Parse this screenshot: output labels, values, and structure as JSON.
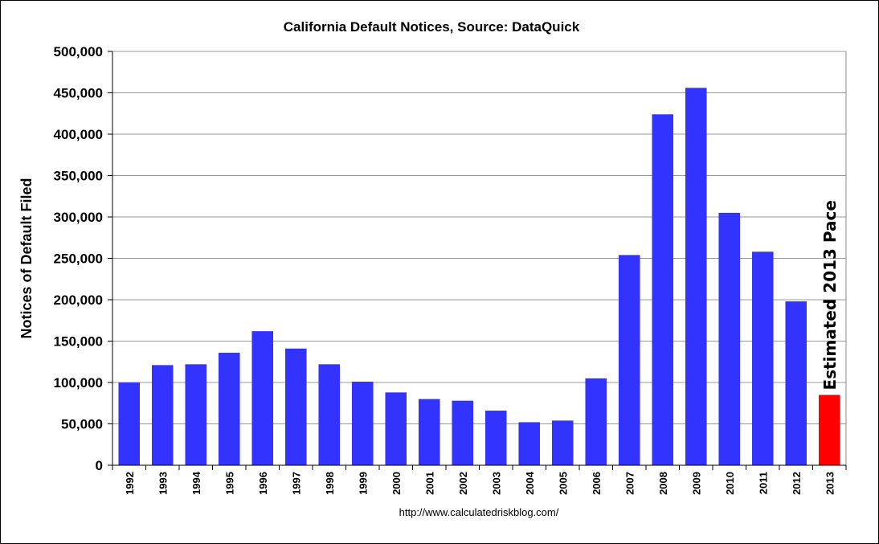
{
  "chart_data": {
    "type": "bar",
    "title": "California Default Notices, Source: DataQuick",
    "ylabel": "Notices of Default Filed",
    "xlabel": "",
    "source_note": "http://www.calculatedriskblog.com/",
    "ylim": [
      0,
      500000
    ],
    "yticks": [
      "0",
      "50,000",
      "100,000",
      "150,000",
      "200,000",
      "250,000",
      "300,000",
      "350,000",
      "400,000",
      "450,000",
      "500,000"
    ],
    "ytick_values": [
      0,
      50000,
      100000,
      150000,
      200000,
      250000,
      300000,
      350000,
      400000,
      450000,
      500000
    ],
    "grid": true,
    "categories": [
      "1992",
      "1993",
      "1994",
      "1995",
      "1996",
      "1997",
      "1998",
      "1999",
      "2000",
      "2001",
      "2002",
      "2003",
      "2004",
      "2005",
      "2006",
      "2007",
      "2008",
      "2009",
      "2010",
      "2011",
      "2012",
      "2013"
    ],
    "values": [
      100000,
      121000,
      122000,
      136000,
      162000,
      141000,
      122000,
      101000,
      88000,
      80000,
      78000,
      66000,
      52000,
      54000,
      105000,
      254000,
      424000,
      456000,
      305000,
      258000,
      198000,
      85000
    ],
    "colors": {
      "bar": "#3333FF",
      "highlight": "#FF0000",
      "grid": "#999999"
    },
    "highlight_category": "2013",
    "annotation": "Estimated 2013 Pace"
  }
}
